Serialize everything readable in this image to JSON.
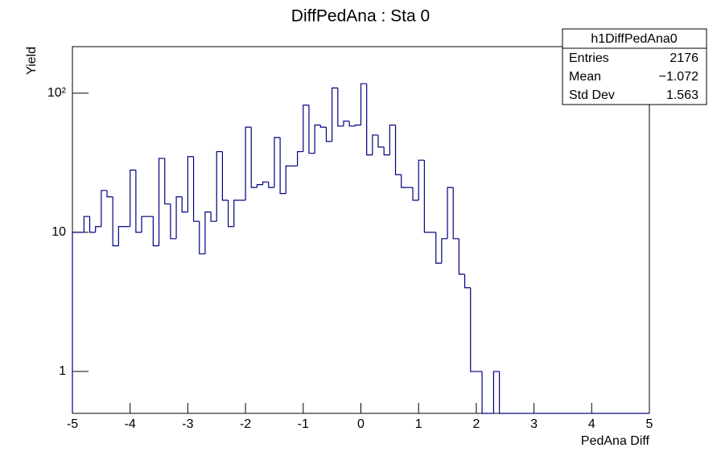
{
  "chart_data": {
    "type": "histogram",
    "title": "DiffPedAna : Sta 0",
    "x_label": "PedAna Diff",
    "y_label": "Yield",
    "color": "#000080",
    "log_y": true,
    "bins": [
      -5,
      -4.9,
      -4.8,
      -4.7,
      -4.6,
      -4.5,
      -4.4,
      -4.3,
      -4.2,
      -4.1,
      -4,
      -3.9,
      -3.8,
      -3.7,
      -3.6,
      -3.5,
      -3.4,
      -3.3,
      -3.2,
      -3.1,
      -3,
      -2.9,
      -2.8,
      -2.7,
      -2.6,
      -2.5,
      -2.4,
      -2.3,
      -2.2,
      -2.1,
      -2,
      -1.9,
      -1.8,
      -1.7,
      -1.6,
      -1.5,
      -1.4,
      -1.3,
      -1.2,
      -1.1,
      -1,
      -0.9,
      -0.8,
      -0.7,
      -0.6,
      -0.5,
      -0.4,
      -0.3,
      -0.2,
      -0.1,
      0,
      0.1,
      0.2,
      0.3,
      0.4,
      0.5,
      0.6,
      0.7,
      0.8,
      0.9,
      1,
      1.1,
      1.2,
      1.3,
      1.4,
      1.5,
      1.6,
      1.7,
      1.8,
      1.9,
      2,
      2.1,
      2.2,
      2.3,
      2.4,
      2.5,
      2.6,
      2.7,
      2.8,
      2.9,
      3,
      3.1,
      3.2,
      3.3,
      3.4,
      3.5,
      3.6,
      3.7,
      3.8,
      3.9,
      4,
      4.1,
      4.2,
      4.3,
      4.4,
      4.5,
      4.6,
      4.7,
      4.8,
      4.9,
      5
    ],
    "values": [
      10,
      10,
      13,
      10,
      11,
      20,
      18,
      8,
      11,
      11,
      28,
      10,
      13,
      13,
      8,
      34,
      16,
      9,
      18,
      14,
      35,
      12,
      7,
      14,
      12,
      38,
      17,
      11,
      17,
      17,
      57,
      21,
      22,
      23,
      21,
      48,
      19,
      30,
      30,
      38,
      82,
      37,
      59,
      57,
      45,
      109,
      58,
      63,
      58,
      59,
      117,
      36,
      50,
      41,
      36,
      59,
      26,
      21,
      21,
      17,
      33,
      10,
      10,
      6,
      9,
      21,
      9,
      5,
      4,
      1,
      1,
      0,
      0,
      1,
      0,
      0,
      0,
      0,
      0,
      0,
      0,
      0,
      0,
      0,
      0,
      0,
      0,
      0,
      0,
      0,
      0,
      0,
      0,
      0,
      0,
      0,
      0,
      0,
      0,
      0
    ],
    "xlim": [
      -5,
      5
    ],
    "xticks": [
      -5,
      -4,
      -3,
      -2,
      -1,
      0,
      1,
      2,
      3,
      4,
      5
    ],
    "ylim": [
      0.5,
      216
    ],
    "yticks": [
      1,
      10,
      {
        "value": 100,
        "label": "10²"
      }
    ],
    "stats": {
      "name": "h1DiffPedAna0",
      "rows": [
        {
          "label": "Entries",
          "value": "2176"
        },
        {
          "label": "Mean",
          "value": "−1.072"
        },
        {
          "label": "Std Dev",
          "value": "1.563"
        }
      ]
    }
  }
}
